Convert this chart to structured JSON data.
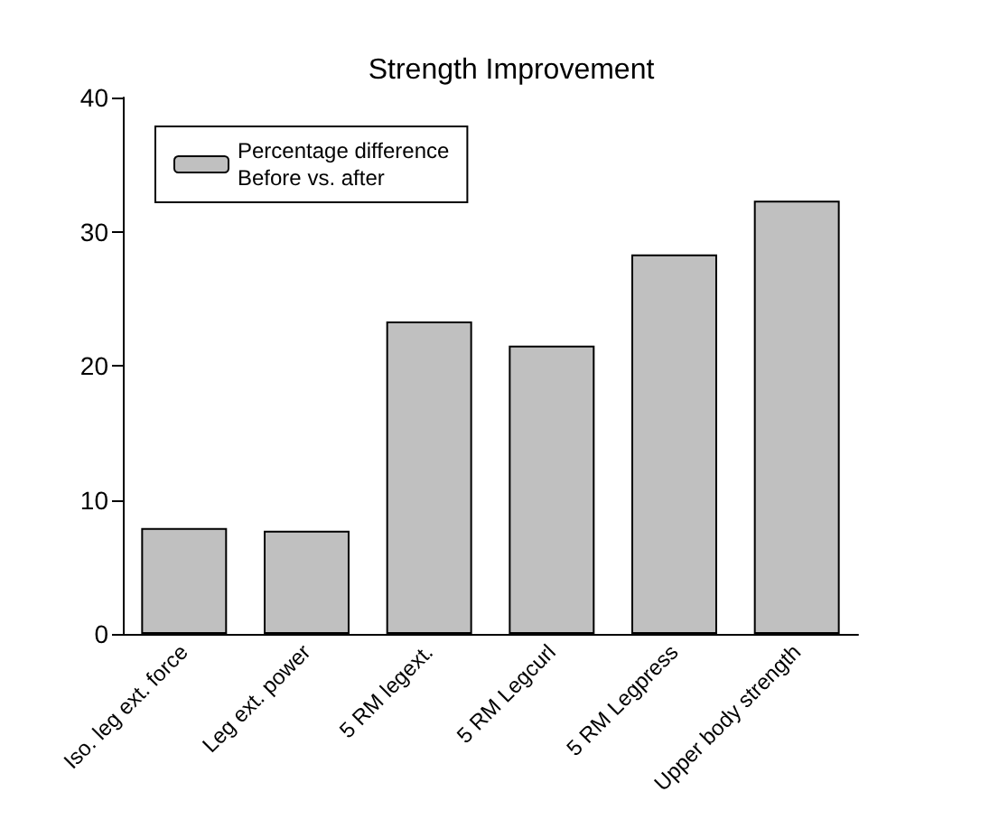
{
  "chart_data": {
    "type": "bar",
    "title": "Strength Improvement",
    "categories": [
      "Iso. leg ext. force",
      "Leg ext. power",
      "5 RM legext.",
      "5 RM Legcurl",
      "5 RM Legpress",
      "Upper body strength"
    ],
    "series": [
      {
        "name": "Percentage difference\nBefore vs. after",
        "color": "#c0c0c0",
        "values": [
          7.9,
          7.7,
          23.3,
          21.5,
          28.3,
          32.3
        ]
      }
    ],
    "ylim": [
      0,
      40
    ],
    "yticks": [
      0,
      10,
      20,
      30,
      40
    ],
    "grid": false,
    "legend": "top left"
  }
}
